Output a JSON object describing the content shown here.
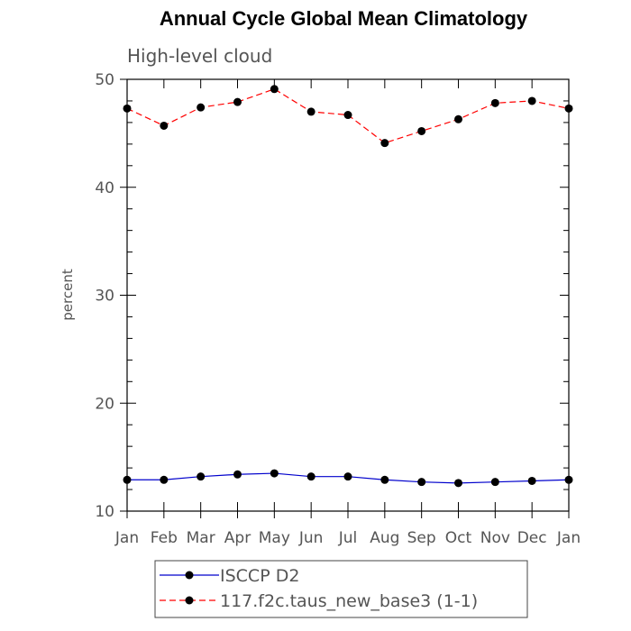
{
  "chart_data": {
    "type": "line",
    "title": "Annual Cycle Global Mean Climatology",
    "subtitle": "High-level cloud",
    "xlabel": "",
    "ylabel": "percent",
    "categories": [
      "Jan",
      "Feb",
      "Mar",
      "Apr",
      "May",
      "Jun",
      "Jul",
      "Aug",
      "Sep",
      "Oct",
      "Nov",
      "Dec",
      "Jan"
    ],
    "ylim": [
      10,
      50
    ],
    "yticks": [
      "10",
      "20",
      "30",
      "40",
      "50"
    ],
    "grid": false,
    "legend_position": "bottom",
    "series": [
      {
        "name": "ISCCP D2",
        "color": "#0000cc",
        "dash": "solid",
        "values": [
          12.9,
          12.9,
          13.2,
          13.4,
          13.5,
          13.2,
          13.2,
          12.9,
          12.7,
          12.6,
          12.7,
          12.8,
          12.9
        ]
      },
      {
        "name": "117.f2c.taus_new_base3 (1-1)",
        "color": "#ff0000",
        "dash": "dashed",
        "values": [
          47.3,
          45.7,
          47.4,
          47.9,
          49.1,
          47.0,
          46.7,
          44.1,
          45.2,
          46.3,
          47.8,
          48.0,
          47.3
        ]
      }
    ]
  }
}
